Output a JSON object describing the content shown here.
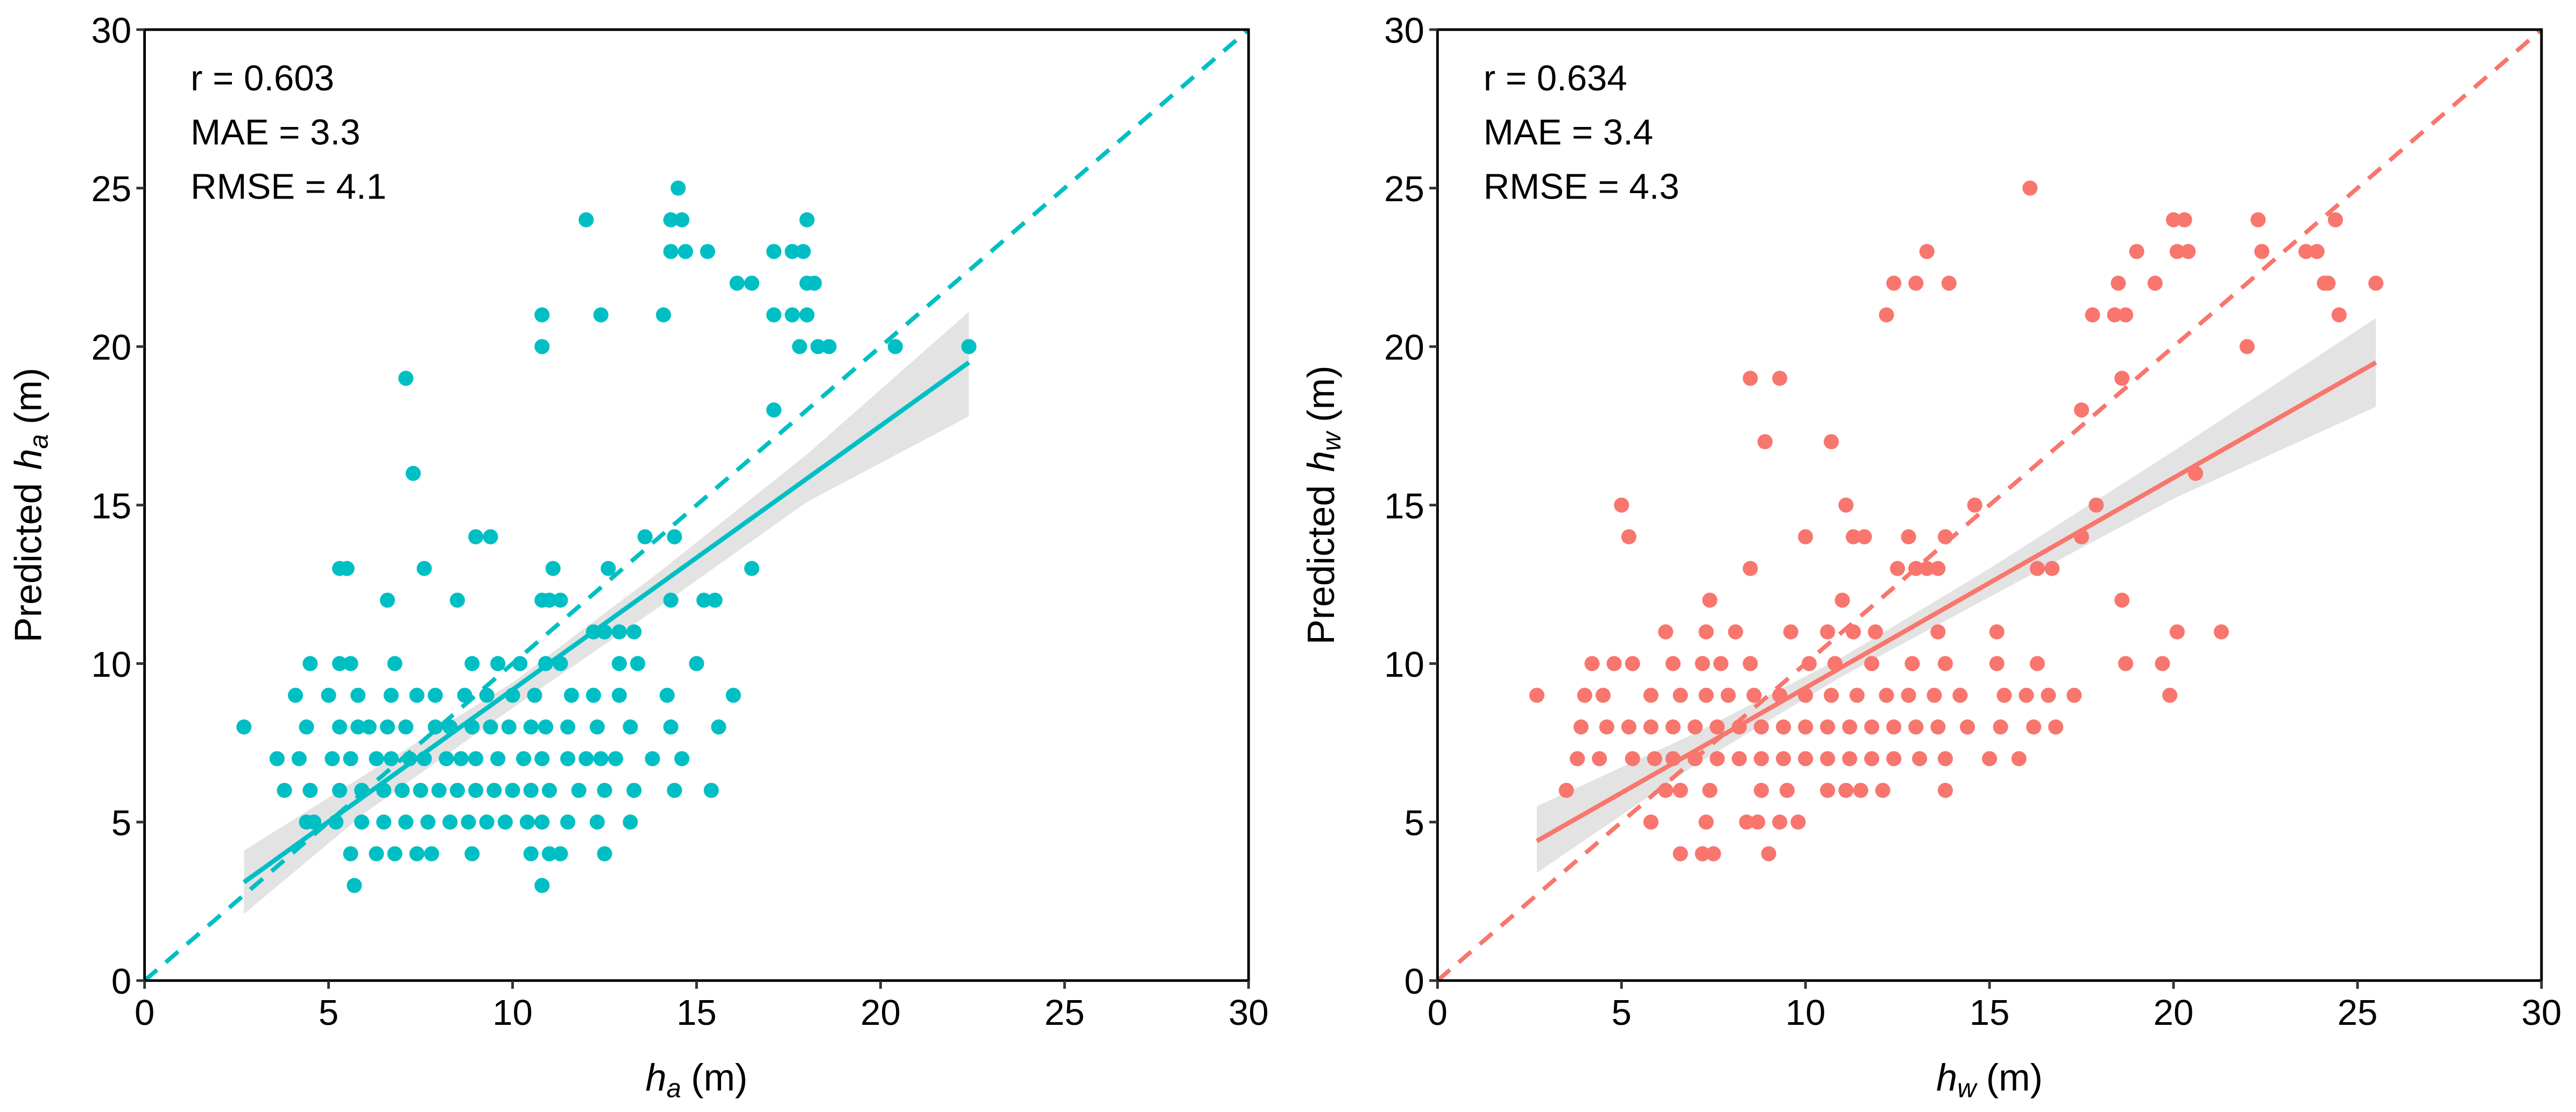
{
  "chart_data": [
    {
      "type": "scatter",
      "panel": "left",
      "color": "#00BFC4",
      "xlabel_var": "h",
      "xlabel_sub": "a",
      "xlabel_unit": "(m)",
      "ylabel_prefix": "Predicted",
      "ylabel_var": "h",
      "ylabel_sub": "a",
      "ylabel_unit": "(m)",
      "xlim": [
        0,
        30
      ],
      "ylim": [
        0,
        30
      ],
      "xticks": [
        "0",
        "5",
        "10",
        "15",
        "20",
        "25",
        "30"
      ],
      "yticks": [
        "0",
        "5",
        "10",
        "15",
        "20",
        "25",
        "30"
      ],
      "stats": {
        "r": "r =  0.603",
        "mae": "MAE =  3.3",
        "rmse": "RMSE =  4.1"
      },
      "fit": {
        "x0": 2.7,
        "y0": 3.1,
        "x1": 22.4,
        "y1": 19.5
      },
      "band": [
        [
          2.7,
          2.1,
          4.1
        ],
        [
          6,
          5.3,
          6.5
        ],
        [
          10,
          8.6,
          9.4
        ],
        [
          14,
          11.8,
          12.9
        ],
        [
          18,
          15.1,
          16.6
        ],
        [
          22.4,
          17.8,
          21.1
        ]
      ],
      "rows": [
        {
          "y": 3,
          "x": [
            5.7,
            10.8
          ]
        },
        {
          "y": 4,
          "x": [
            5.6,
            6.3,
            6.8,
            7.4,
            7.8,
            8.9,
            10.5,
            11.0,
            11.3,
            12.5
          ]
        },
        {
          "y": 5,
          "x": [
            4.4,
            4.6,
            5.2,
            5.9,
            6.5,
            7.1,
            7.7,
            8.3,
            8.8,
            9.3,
            9.8,
            10.4,
            10.8,
            11.5,
            12.3,
            13.2
          ]
        },
        {
          "y": 6,
          "x": [
            3.8,
            4.5,
            5.3,
            5.9,
            6.5,
            7.0,
            7.5,
            8.0,
            8.5,
            9.0,
            9.5,
            10.0,
            10.5,
            11.0,
            11.8,
            12.5,
            13.3,
            14.4,
            15.4
          ]
        },
        {
          "y": 7,
          "x": [
            3.6,
            4.2,
            5.1,
            5.6,
            6.3,
            6.7,
            7.2,
            7.6,
            8.2,
            8.6,
            9.0,
            9.6,
            10.3,
            10.8,
            11.5,
            12.0,
            12.4,
            12.8,
            13.8,
            14.6
          ]
        },
        {
          "y": 8,
          "x": [
            2.7,
            4.4,
            5.3,
            5.8,
            6.1,
            6.6,
            7.1,
            7.9,
            8.3,
            8.9,
            9.4,
            9.9,
            10.5,
            10.9,
            11.5,
            12.3,
            13.2,
            14.3,
            15.6
          ]
        },
        {
          "y": 9,
          "x": [
            4.1,
            5.0,
            5.8,
            6.7,
            7.4,
            7.9,
            8.7,
            9.3,
            10.0,
            10.6,
            11.6,
            12.2,
            12.9,
            14.2,
            16.0
          ]
        },
        {
          "y": 10,
          "x": [
            4.5,
            5.3,
            5.6,
            6.8,
            8.9,
            9.6,
            10.2,
            10.9,
            11.3,
            12.9,
            13.4,
            15.0
          ]
        },
        {
          "y": 11,
          "x": [
            12.2,
            12.5,
            12.9,
            13.3
          ]
        },
        {
          "y": 12,
          "x": [
            6.6,
            8.5,
            10.8,
            11.0,
            11.3,
            14.3,
            15.2,
            15.5
          ]
        },
        {
          "y": 13,
          "x": [
            5.3,
            5.5,
            7.6,
            11.1,
            12.6,
            16.5
          ]
        },
        {
          "y": 14,
          "x": [
            9.0,
            9.4,
            13.6,
            14.4
          ]
        },
        {
          "y": 16,
          "x": [
            7.3
          ]
        },
        {
          "y": 18,
          "x": [
            17.1
          ]
        },
        {
          "y": 19,
          "x": [
            7.1
          ]
        },
        {
          "y": 20,
          "x": [
            10.8,
            17.8,
            18.3,
            18.6,
            20.4,
            22.4
          ]
        },
        {
          "y": 21,
          "x": [
            10.8,
            12.4,
            14.1,
            17.1,
            17.6,
            18.0
          ]
        },
        {
          "y": 22,
          "x": [
            16.1,
            16.5,
            18.0,
            18.2
          ]
        },
        {
          "y": 23,
          "x": [
            14.3,
            14.7,
            15.3,
            17.1,
            17.6,
            17.9
          ]
        },
        {
          "y": 24,
          "x": [
            12.0,
            14.3,
            14.6,
            18.0
          ]
        },
        {
          "y": 25,
          "x": [
            14.5
          ]
        }
      ]
    },
    {
      "type": "scatter",
      "panel": "right",
      "color": "#F8766D",
      "xlabel_var": "h",
      "xlabel_sub": "w",
      "xlabel_unit": "(m)",
      "ylabel_prefix": "Predicted",
      "ylabel_var": "h",
      "ylabel_sub": "w",
      "ylabel_unit": "(m)",
      "xlim": [
        0,
        30
      ],
      "ylim": [
        0,
        30
      ],
      "xticks": [
        "0",
        "5",
        "10",
        "15",
        "20",
        "25",
        "30"
      ],
      "yticks": [
        "0",
        "5",
        "10",
        "15",
        "20",
        "25",
        "30"
      ],
      "stats": {
        "r": "r =  0.634",
        "mae": "MAE =  3.4",
        "rmse": "RMSE =  4.3"
      },
      "fit": {
        "x0": 2.7,
        "y0": 4.4,
        "x1": 25.5,
        "y1": 19.5
      },
      "band": [
        [
          2.7,
          3.4,
          5.5
        ],
        [
          7,
          6.8,
          7.8
        ],
        [
          11,
          9.6,
          10.2
        ],
        [
          15,
          12.1,
          13.0
        ],
        [
          20,
          15.2,
          16.7
        ],
        [
          25.5,
          18.1,
          20.9
        ]
      ],
      "rows": [
        {
          "y": 4,
          "x": [
            6.6,
            7.2,
            7.5,
            9.0
          ]
        },
        {
          "y": 5,
          "x": [
            5.8,
            7.3,
            8.4,
            8.7,
            9.3,
            9.8
          ]
        },
        {
          "y": 6,
          "x": [
            3.5,
            6.2,
            6.6,
            7.4,
            8.8,
            9.5,
            10.6,
            11.1,
            11.5,
            12.1,
            13.8
          ]
        },
        {
          "y": 7,
          "x": [
            3.8,
            4.4,
            5.3,
            5.9,
            6.4,
            7.0,
            7.6,
            8.2,
            8.8,
            9.4,
            10.0,
            10.6,
            11.2,
            11.8,
            12.4,
            13.1,
            13.8,
            15.0,
            15.8
          ]
        },
        {
          "y": 8,
          "x": [
            3.9,
            4.6,
            5.2,
            5.8,
            6.4,
            7.0,
            7.6,
            8.2,
            8.8,
            9.4,
            10.0,
            10.6,
            11.2,
            11.8,
            12.4,
            13.0,
            13.6,
            14.4,
            15.3,
            16.2,
            16.8
          ]
        },
        {
          "y": 9,
          "x": [
            2.7,
            4.0,
            4.5,
            5.8,
            6.6,
            7.3,
            7.9,
            8.6,
            9.3,
            10.0,
            10.7,
            11.4,
            12.2,
            12.8,
            13.5,
            14.2,
            15.4,
            16.0,
            16.6,
            17.3,
            19.9
          ]
        },
        {
          "y": 10,
          "x": [
            4.2,
            4.8,
            5.3,
            6.4,
            7.2,
            7.7,
            8.5,
            10.1,
            10.8,
            11.8,
            12.9,
            13.8,
            15.2,
            16.3,
            18.7,
            19.7
          ]
        },
        {
          "y": 11,
          "x": [
            6.2,
            7.3,
            8.1,
            9.6,
            10.6,
            11.3,
            11.9,
            13.6,
            15.2,
            20.1,
            21.3
          ]
        },
        {
          "y": 12,
          "x": [
            7.4,
            11.0,
            18.6
          ]
        },
        {
          "y": 13,
          "x": [
            8.5,
            12.5,
            13.0,
            13.3,
            13.6,
            16.3,
            16.7
          ]
        },
        {
          "y": 14,
          "x": [
            5.2,
            10.0,
            11.3,
            11.6,
            12.8,
            13.8,
            17.5
          ]
        },
        {
          "y": 15,
          "x": [
            5.0,
            11.1,
            14.6,
            17.9
          ]
        },
        {
          "y": 16,
          "x": [
            20.6
          ]
        },
        {
          "y": 17,
          "x": [
            8.9,
            10.7
          ]
        },
        {
          "y": 18,
          "x": [
            17.5
          ]
        },
        {
          "y": 19,
          "x": [
            8.5,
            9.3,
            18.6
          ]
        },
        {
          "y": 20,
          "x": [
            22.0
          ]
        },
        {
          "y": 21,
          "x": [
            12.2,
            17.8,
            18.4,
            18.7,
            24.5
          ]
        },
        {
          "y": 22,
          "x": [
            12.4,
            13.0,
            13.9,
            18.5,
            19.5,
            24.1,
            24.2,
            25.5
          ]
        },
        {
          "y": 23,
          "x": [
            13.3,
            19.0,
            20.1,
            20.4,
            22.4,
            23.6,
            23.9
          ]
        },
        {
          "y": 24,
          "x": [
            20.0,
            20.3,
            22.3,
            24.4
          ]
        },
        {
          "y": 25,
          "x": [
            16.1
          ]
        }
      ]
    }
  ]
}
